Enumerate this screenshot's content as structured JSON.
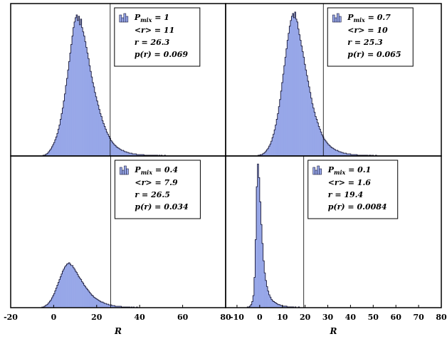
{
  "chart_data": [
    {
      "type": "histogram",
      "panel": "top-left",
      "xlim": [
        -20,
        80
      ],
      "ylim": [
        0,
        210
      ],
      "xlabel": "",
      "xticks": [],
      "bin_start": -10,
      "bin_width": 0.5,
      "values": [
        0,
        0,
        0,
        0,
        0,
        0,
        0,
        0,
        0,
        0,
        1,
        1,
        2,
        3,
        4,
        6,
        8,
        10,
        13,
        16,
        19,
        23,
        27,
        32,
        38,
        44,
        52,
        60,
        68,
        78,
        88,
        100,
        110,
        122,
        134,
        146,
        158,
        170,
        182,
        190,
        196,
        200,
        192,
        198,
        186,
        194,
        182,
        176,
        170,
        162,
        154,
        146,
        138,
        128,
        120,
        112,
        104,
        98,
        90,
        84,
        78,
        72,
        66,
        60,
        56,
        50,
        46,
        42,
        38,
        34,
        31,
        28,
        25,
        22,
        20,
        18,
        16,
        15,
        13,
        12,
        11,
        10,
        9,
        8,
        8,
        7,
        6,
        6,
        5,
        5,
        4,
        4,
        4,
        3,
        3,
        3,
        3,
        2,
        2,
        2,
        2,
        2,
        2,
        2,
        1,
        1,
        1,
        1,
        1,
        1,
        1,
        1,
        1,
        1,
        1,
        1,
        1,
        0,
        1,
        0,
        1,
        0,
        0,
        1,
        0,
        0,
        0,
        0,
        0,
        0
      ],
      "cut_r": 26.3,
      "legend": {
        "title": "P",
        "title_sub": "mix",
        "title_value": " = 1",
        "lines": [
          "<r> = 11",
          "r = 26.3",
          "p(r) = 0.069"
        ]
      }
    },
    {
      "type": "histogram",
      "panel": "top-right",
      "xlim": [
        -20,
        80
      ],
      "ylim": [
        0,
        210
      ],
      "xlabel": "",
      "xticks": [],
      "bin_start": -10,
      "bin_width": 0.5,
      "values": [
        0,
        0,
        0,
        0,
        0,
        0,
        0,
        0,
        0,
        0,
        1,
        1,
        2,
        2,
        3,
        4,
        5,
        7,
        9,
        11,
        14,
        17,
        21,
        26,
        31,
        37,
        44,
        52,
        60,
        70,
        80,
        92,
        104,
        116,
        128,
        140,
        152,
        164,
        174,
        184,
        192,
        198,
        202,
        196,
        204,
        194,
        190,
        180,
        172,
        164,
        156,
        148,
        140,
        130,
        122,
        114,
        106,
        98,
        90,
        82,
        74,
        68,
        62,
        56,
        52,
        47,
        42,
        38,
        34,
        30,
        27,
        24,
        22,
        20,
        18,
        16,
        15,
        13,
        12,
        11,
        10,
        9,
        8,
        8,
        7,
        6,
        6,
        5,
        5,
        4,
        4,
        4,
        3,
        3,
        3,
        3,
        2,
        2,
        2,
        2,
        2,
        2,
        1,
        1,
        1,
        1,
        1,
        1,
        1,
        1,
        1,
        1,
        0,
        1,
        1,
        0,
        1,
        0,
        0,
        1,
        0,
        0,
        0,
        0,
        0,
        0,
        0,
        0,
        0,
        0
      ],
      "cut_r": 25.3,
      "legend": {
        "title": "P",
        "title_sub": "mix",
        "title_value": " = 0.7",
        "lines": [
          "<r> = 10",
          "r = 25.3",
          "p(r) = 0.065"
        ]
      }
    },
    {
      "type": "histogram",
      "panel": "bottom-left",
      "xlim": [
        -20,
        80
      ],
      "ylim": [
        0,
        210
      ],
      "xlabel": "R",
      "xticks": [
        -20,
        0,
        20,
        40,
        60,
        80
      ],
      "bin_start": -10,
      "bin_width": 0.5,
      "values": [
        0,
        0,
        0,
        0,
        0,
        0,
        0,
        0,
        0,
        1,
        1,
        2,
        3,
        4,
        5,
        7,
        9,
        11,
        14,
        17,
        20,
        24,
        28,
        32,
        36,
        40,
        44,
        48,
        52,
        55,
        58,
        60,
        62,
        63,
        64,
        62,
        60,
        60,
        57,
        55,
        52,
        50,
        47,
        44,
        42,
        40,
        37,
        35,
        32,
        30,
        28,
        26,
        24,
        22,
        20,
        18,
        17,
        15,
        14,
        13,
        12,
        11,
        10,
        9,
        8,
        8,
        7,
        6,
        6,
        5,
        5,
        4,
        4,
        4,
        3,
        3,
        3,
        2,
        2,
        2,
        2,
        2,
        2,
        1,
        1,
        1,
        1,
        1,
        1,
        1,
        1,
        0,
        1,
        0,
        1,
        0,
        0,
        1,
        0,
        0,
        0,
        0,
        0,
        0,
        0,
        0,
        0,
        0,
        0,
        0
      ],
      "cut_r": 26.5,
      "legend": {
        "title": "P",
        "title_sub": "mix",
        "title_value": " = 0.4",
        "lines": [
          "<r> = 7.9",
          "r = 26.5",
          "p(r) = 0.034"
        ]
      }
    },
    {
      "type": "histogram",
      "panel": "bottom-right",
      "xlim": [
        -15,
        80
      ],
      "ylim": [
        0,
        195
      ],
      "xlabel": "R",
      "xticks": [
        -10,
        0,
        10,
        20,
        30,
        40,
        50,
        60,
        70,
        80
      ],
      "bin_start": -6,
      "bin_width": 0.5,
      "values": [
        0,
        1,
        1,
        2,
        4,
        8,
        16,
        40,
        90,
        160,
        190,
        172,
        140,
        110,
        85,
        62,
        46,
        36,
        28,
        22,
        17,
        14,
        11,
        9,
        8,
        7,
        6,
        5,
        4,
        4,
        3,
        3,
        2,
        2,
        2,
        2,
        1,
        1,
        1,
        1,
        1,
        1,
        0,
        1,
        0,
        0,
        1,
        0,
        0,
        0
      ],
      "cut_r": 19.4,
      "legend": {
        "title": "P",
        "title_sub": "mix",
        "title_value": " = 0.1",
        "lines": [
          "<r> = 1.6",
          "r = 19.4",
          "p(r) = 0.0084"
        ]
      }
    }
  ]
}
